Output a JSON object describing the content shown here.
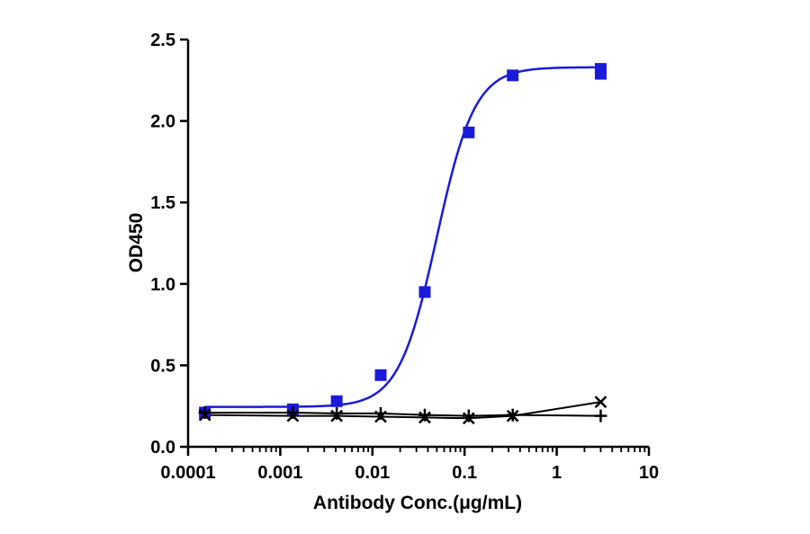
{
  "chart_data": {
    "type": "scatter",
    "title": "",
    "xlabel": "Antibody Conc.(μg/mL)",
    "ylabel": "OD450",
    "xscale": "log",
    "xlim": [
      0.0001,
      10
    ],
    "ylim": [
      0,
      2.5
    ],
    "x_ticks": [
      "0.0001",
      "0.001",
      "0.01",
      "0.1",
      "1",
      "10"
    ],
    "y_ticks": [
      "0.0",
      "0.5",
      "1.0",
      "1.5",
      "2.0",
      "2.5"
    ],
    "grid": false,
    "legend": "none",
    "series": [
      {
        "marker": "square",
        "color": "#1a1adb",
        "fit": "sigmoid",
        "x": [
          0.000152,
          0.00137,
          0.0041,
          0.0123,
          0.037,
          0.111,
          0.333,
          3.0,
          3.0
        ],
        "y": [
          0.21,
          0.23,
          0.28,
          0.44,
          0.95,
          1.93,
          2.28,
          2.29,
          2.32
        ]
      },
      {
        "marker": "x",
        "color": "#000000",
        "fit": "line",
        "x": [
          0.000152,
          0.00137,
          0.0041,
          0.0123,
          0.037,
          0.111,
          0.333,
          3.0
        ],
        "y": [
          0.195,
          0.19,
          0.19,
          0.185,
          0.18,
          0.175,
          0.19,
          0.275
        ]
      },
      {
        "marker": "plus",
        "color": "#000000",
        "fit": "line",
        "x": [
          0.000152,
          0.00137,
          0.0041,
          0.0123,
          0.037,
          0.111,
          0.333,
          3.0
        ],
        "y": [
          0.21,
          0.21,
          0.205,
          0.205,
          0.195,
          0.19,
          0.195,
          0.19
        ]
      }
    ]
  }
}
